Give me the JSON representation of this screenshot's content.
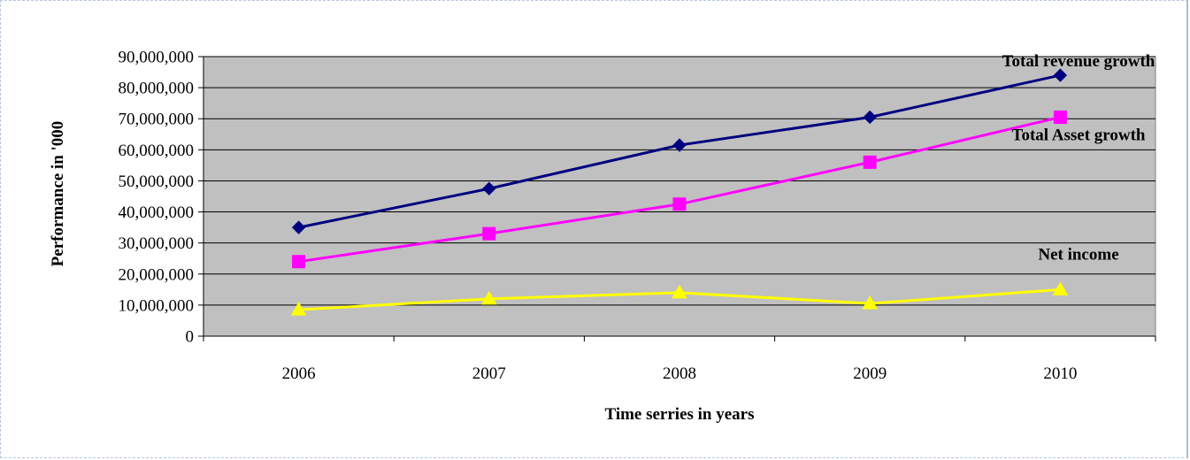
{
  "chart_data": {
    "type": "line",
    "title": "",
    "xlabel": "Time serries in years",
    "ylabel": "Performance in '000",
    "categories": [
      "2006",
      "2007",
      "2008",
      "2009",
      "2010"
    ],
    "ylim": [
      0,
      90000000
    ],
    "yticks": [
      0,
      10000000,
      20000000,
      30000000,
      40000000,
      50000000,
      60000000,
      70000000,
      80000000,
      90000000
    ],
    "ytick_labels": [
      "0",
      "10,000,000",
      "20,000,000",
      "30,000,000",
      "40,000,000",
      "50,000,000",
      "60,000,000",
      "70,000,000",
      "80,000,000",
      "90,000,000"
    ],
    "grid": true,
    "plot_background": "#c0c0c0",
    "series": [
      {
        "name": "Total revenue growth",
        "color": "#000080",
        "marker": "diamond",
        "values": [
          35000000,
          47500000,
          61500000,
          70500000,
          84000000
        ]
      },
      {
        "name": "Total Asset growth",
        "color": "#ff00ff",
        "marker": "square",
        "values": [
          24000000,
          33000000,
          42500000,
          56000000,
          70500000
        ]
      },
      {
        "name": "Net income",
        "color": "#ffff00",
        "marker": "triangle",
        "values": [
          8500000,
          12000000,
          14000000,
          10500000,
          15000000
        ]
      }
    ]
  }
}
